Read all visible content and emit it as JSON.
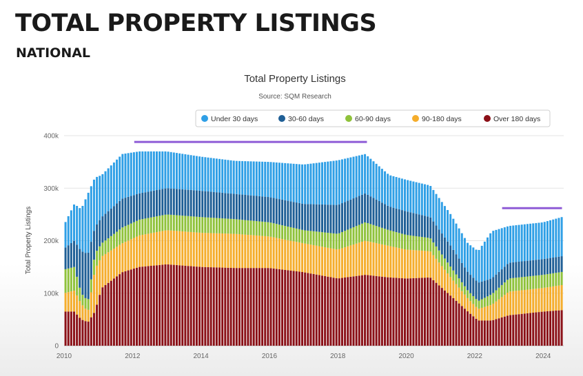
{
  "slide": {
    "title": "TOTAL PROPERTY LISTINGS",
    "subtitle": "NATIONAL"
  },
  "colors": {
    "under_30": "#2f9fe6",
    "d30_60": "#1f5f96",
    "d60_90": "#8fc23b",
    "d90_180": "#f5ad2c",
    "over_180": "#8b1017",
    "highlight_line": "#8e5bd6"
  },
  "chart_data": {
    "type": "bar",
    "stacked": true,
    "title": "Total Property Listings",
    "subtitle": "Source: SQM Research",
    "xlabel": "",
    "ylabel": "Total Property Listings",
    "ylim": [
      0,
      400000
    ],
    "xlim": [
      2010,
      2024.6
    ],
    "y_ticks": [
      {
        "value": 0,
        "label": "0"
      },
      {
        "value": 100000,
        "label": "100k"
      },
      {
        "value": 200000,
        "label": "200k"
      },
      {
        "value": 300000,
        "label": "300k"
      },
      {
        "value": 400000,
        "label": "400k"
      }
    ],
    "x_ticks": [
      "2010",
      "2012",
      "2014",
      "2016",
      "2018",
      "2020",
      "2022",
      "2024"
    ],
    "grid": true,
    "legend_position": "top",
    "legend": [
      "Under 30 days",
      "30-60 days",
      "60-90 days",
      "90-180 days",
      "Over 180 days"
    ],
    "bar_interval": "monthly",
    "series_order": [
      "Over 180 days",
      "90-180 days",
      "60-90 days",
      "30-60 days",
      "Under 30 days"
    ],
    "keyframes": [
      {
        "t": 2010.0,
        "over180": 65000,
        "d90_180": 35000,
        "d60_90": 45000,
        "d30_60": 40000,
        "under30": 45000
      },
      {
        "t": 2010.3,
        "over180": 65000,
        "d90_180": 40000,
        "d60_90": 45000,
        "d30_60": 50000,
        "under30": 70000
      },
      {
        "t": 2010.5,
        "over180": 50000,
        "d90_180": 30000,
        "d60_90": 20000,
        "d30_60": 80000,
        "under30": 80000
      },
      {
        "t": 2010.7,
        "over180": 45000,
        "d90_180": 20000,
        "d60_90": 20000,
        "d30_60": 90000,
        "under30": 115000
      },
      {
        "t": 2010.9,
        "over180": 65000,
        "d90_180": 80000,
        "d60_90": 30000,
        "d30_60": 50000,
        "under30": 95000
      },
      {
        "t": 2011.1,
        "over180": 110000,
        "d90_180": 60000,
        "d60_90": 25000,
        "d30_60": 50000,
        "under30": 80000
      },
      {
        "t": 2011.7,
        "over180": 140000,
        "d90_180": 55000,
        "d60_90": 30000,
        "d30_60": 55000,
        "under30": 85000
      },
      {
        "t": 2012.2,
        "over180": 150000,
        "d90_180": 60000,
        "d60_90": 30000,
        "d30_60": 50000,
        "under30": 80000
      },
      {
        "t": 2013.0,
        "over180": 155000,
        "d90_180": 65000,
        "d60_90": 30000,
        "d30_60": 50000,
        "under30": 70000
      },
      {
        "t": 2014.0,
        "over180": 150000,
        "d90_180": 65000,
        "d60_90": 30000,
        "d30_60": 50000,
        "under30": 65000
      },
      {
        "t": 2015.0,
        "over180": 148000,
        "d90_180": 65000,
        "d60_90": 28000,
        "d30_60": 48000,
        "under30": 63000
      },
      {
        "t": 2016.0,
        "over180": 148000,
        "d90_180": 60000,
        "d60_90": 27000,
        "d30_60": 48000,
        "under30": 67000
      },
      {
        "t": 2017.0,
        "over180": 140000,
        "d90_180": 55000,
        "d60_90": 25000,
        "d30_60": 50000,
        "under30": 75000
      },
      {
        "t": 2018.0,
        "over180": 128000,
        "d90_180": 55000,
        "d60_90": 30000,
        "d30_60": 55000,
        "under30": 85000
      },
      {
        "t": 2018.8,
        "over180": 135000,
        "d90_180": 65000,
        "d60_90": 35000,
        "d30_60": 55000,
        "under30": 75000
      },
      {
        "t": 2019.5,
        "over180": 130000,
        "d90_180": 60000,
        "d60_90": 30000,
        "d30_60": 45000,
        "under30": 60000
      },
      {
        "t": 2020.0,
        "over180": 128000,
        "d90_180": 55000,
        "d60_90": 28000,
        "d30_60": 45000,
        "under30": 60000
      },
      {
        "t": 2020.7,
        "over180": 130000,
        "d90_180": 50000,
        "d60_90": 25000,
        "d30_60": 40000,
        "under30": 60000
      },
      {
        "t": 2021.3,
        "over180": 95000,
        "d90_180": 35000,
        "d60_90": 20000,
        "d30_60": 40000,
        "under30": 60000
      },
      {
        "t": 2021.8,
        "over180": 65000,
        "d90_180": 25000,
        "d60_90": 15000,
        "d30_60": 35000,
        "under30": 55000
      },
      {
        "t": 2022.1,
        "over180": 48000,
        "d90_180": 22000,
        "d60_90": 15000,
        "d30_60": 35000,
        "under30": 60000
      },
      {
        "t": 2022.5,
        "over180": 48000,
        "d90_180": 30000,
        "d60_90": 20000,
        "d30_60": 30000,
        "under30": 90000
      },
      {
        "t": 2023.0,
        "over180": 58000,
        "d90_180": 45000,
        "d60_90": 25000,
        "d30_60": 30000,
        "under30": 70000
      },
      {
        "t": 2024.0,
        "over180": 65000,
        "d90_180": 45000,
        "d60_90": 25000,
        "d30_60": 30000,
        "under30": 70000
      },
      {
        "t": 2024.6,
        "over180": 68000,
        "d90_180": 48000,
        "d60_90": 25000,
        "d30_60": 30000,
        "under30": 75000
      }
    ],
    "highlight_lines": [
      {
        "x_start": 2012.05,
        "x_end": 2018.85,
        "y": 388000
      },
      {
        "x_start": 2022.8,
        "x_end": 2024.55,
        "y": 262000
      }
    ]
  }
}
